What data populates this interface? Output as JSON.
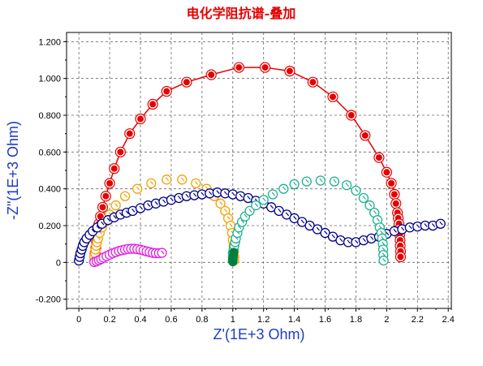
{
  "chart_data": {
    "type": "scatter",
    "title": "电化学阻抗谱-叠加",
    "xlabel": "Z'(1E+3 Ohm)",
    "ylabel": "-Z\"(1E+3 Ohm)",
    "xlim": [
      -0.08,
      2.42
    ],
    "ylim": [
      -0.25,
      1.25
    ],
    "xticks": [
      0,
      0.2,
      0.4,
      0.6,
      0.8,
      1,
      1.2,
      1.4,
      1.6,
      1.8,
      2,
      2.2,
      2.4
    ],
    "xtick_labels": [
      "0",
      "0.2",
      "0.4",
      "0.6",
      "0.8",
      "1",
      "1.2",
      "1.4",
      "1.6",
      "1.8",
      "2",
      "2.2",
      "2.4"
    ],
    "yticks": [
      -0.2,
      0,
      0.2,
      0.4,
      0.6,
      0.8,
      1.0,
      1.2
    ],
    "ytick_labels": [
      "-0.200",
      "0",
      "0.200",
      "0.400",
      "0.600",
      "0.800",
      "1.000",
      "1.200"
    ],
    "grid": true,
    "legend": "none",
    "series": [
      {
        "color": "#E60000",
        "marker": "filled-circle-ring",
        "points": [
          [
            0.105,
            0.02
          ],
          [
            0.105,
            0.05
          ],
          [
            0.11,
            0.08
          ],
          [
            0.115,
            0.11
          ],
          [
            0.12,
            0.15
          ],
          [
            0.125,
            0.18
          ],
          [
            0.13,
            0.21
          ],
          [
            0.14,
            0.25
          ],
          [
            0.155,
            0.3
          ],
          [
            0.175,
            0.36
          ],
          [
            0.2,
            0.43
          ],
          [
            0.23,
            0.51
          ],
          [
            0.27,
            0.6
          ],
          [
            0.33,
            0.7
          ],
          [
            0.4,
            0.78
          ],
          [
            0.48,
            0.86
          ],
          [
            0.57,
            0.93
          ],
          [
            0.7,
            0.98
          ],
          [
            0.86,
            1.02
          ],
          [
            1.04,
            1.06
          ],
          [
            1.21,
            1.06
          ],
          [
            1.37,
            1.04
          ],
          [
            1.52,
            0.98
          ],
          [
            1.65,
            0.9
          ],
          [
            1.77,
            0.8
          ],
          [
            1.86,
            0.69
          ],
          [
            1.95,
            0.57
          ],
          [
            2.0,
            0.49
          ],
          [
            2.03,
            0.43
          ],
          [
            2.05,
            0.37
          ],
          [
            2.06,
            0.32
          ],
          [
            2.07,
            0.27
          ],
          [
            2.075,
            0.24
          ],
          [
            2.08,
            0.21
          ],
          [
            2.082,
            0.18
          ],
          [
            2.085,
            0.15
          ],
          [
            2.087,
            0.12
          ],
          [
            2.088,
            0.09
          ],
          [
            2.09,
            0.06
          ],
          [
            2.09,
            0.03
          ]
        ]
      },
      {
        "color": "#F5A000",
        "marker": "open-circle-tick",
        "points": [
          [
            0.1,
            0.01
          ],
          [
            0.1,
            0.03
          ],
          [
            0.105,
            0.05
          ],
          [
            0.108,
            0.07
          ],
          [
            0.112,
            0.09
          ],
          [
            0.118,
            0.11
          ],
          [
            0.125,
            0.13
          ],
          [
            0.135,
            0.16
          ],
          [
            0.15,
            0.19
          ],
          [
            0.17,
            0.22
          ],
          [
            0.2,
            0.26
          ],
          [
            0.24,
            0.31
          ],
          [
            0.3,
            0.36
          ],
          [
            0.38,
            0.4
          ],
          [
            0.47,
            0.43
          ],
          [
            0.57,
            0.45
          ],
          [
            0.67,
            0.45
          ],
          [
            0.76,
            0.43
          ],
          [
            0.83,
            0.4
          ],
          [
            0.88,
            0.36
          ],
          [
            0.92,
            0.32
          ],
          [
            0.95,
            0.28
          ],
          [
            0.97,
            0.24
          ],
          [
            0.985,
            0.2
          ],
          [
            0.995,
            0.16
          ],
          [
            1.0,
            0.12
          ],
          [
            1.005,
            0.09
          ],
          [
            1.008,
            0.06
          ],
          [
            1.01,
            0.03
          ],
          [
            1.01,
            0.01
          ]
        ]
      },
      {
        "color": "#00008B",
        "marker": "open-circle-tick",
        "points": [
          [
            0.0,
            0.01
          ],
          [
            0.005,
            0.03
          ],
          [
            0.01,
            0.05
          ],
          [
            0.018,
            0.07
          ],
          [
            0.025,
            0.09
          ],
          [
            0.035,
            0.11
          ],
          [
            0.05,
            0.13
          ],
          [
            0.07,
            0.15
          ],
          [
            0.09,
            0.17
          ],
          [
            0.12,
            0.19
          ],
          [
            0.15,
            0.21
          ],
          [
            0.19,
            0.23
          ],
          [
            0.23,
            0.245
          ],
          [
            0.27,
            0.26
          ],
          [
            0.31,
            0.27
          ],
          [
            0.35,
            0.28
          ],
          [
            0.4,
            0.295
          ],
          [
            0.45,
            0.31
          ],
          [
            0.5,
            0.32
          ],
          [
            0.55,
            0.33
          ],
          [
            0.6,
            0.34
          ],
          [
            0.65,
            0.35
          ],
          [
            0.7,
            0.36
          ],
          [
            0.75,
            0.365
          ],
          [
            0.8,
            0.37
          ],
          [
            0.85,
            0.375
          ],
          [
            0.9,
            0.38
          ],
          [
            0.95,
            0.375
          ],
          [
            1.0,
            0.37
          ],
          [
            1.05,
            0.36
          ],
          [
            1.1,
            0.35
          ],
          [
            1.15,
            0.335
          ],
          [
            1.2,
            0.32
          ],
          [
            1.25,
            0.3
          ],
          [
            1.3,
            0.28
          ],
          [
            1.35,
            0.26
          ],
          [
            1.4,
            0.24
          ],
          [
            1.45,
            0.22
          ],
          [
            1.5,
            0.2
          ],
          [
            1.55,
            0.18
          ],
          [
            1.6,
            0.16
          ],
          [
            1.65,
            0.14
          ],
          [
            1.7,
            0.12
          ],
          [
            1.75,
            0.11
          ],
          [
            1.8,
            0.11
          ],
          [
            1.85,
            0.12
          ],
          [
            1.9,
            0.13
          ],
          [
            1.95,
            0.14
          ],
          [
            2.0,
            0.155
          ],
          [
            2.05,
            0.17
          ],
          [
            2.1,
            0.18
          ],
          [
            2.15,
            0.19
          ],
          [
            2.2,
            0.195
          ],
          [
            2.25,
            0.2
          ],
          [
            2.3,
            0.2
          ],
          [
            2.35,
            0.21
          ]
        ]
      },
      {
        "color": "#20B090",
        "marker": "open-circle-tick",
        "points": [
          [
            1.0,
            0.01
          ],
          [
            1.0,
            0.03
          ],
          [
            1.0,
            0.05
          ],
          [
            1.005,
            0.07
          ],
          [
            1.01,
            0.09
          ],
          [
            1.015,
            0.11
          ],
          [
            1.02,
            0.13
          ],
          [
            1.03,
            0.16
          ],
          [
            1.04,
            0.19
          ],
          [
            1.06,
            0.22
          ],
          [
            1.08,
            0.25
          ],
          [
            1.11,
            0.28
          ],
          [
            1.15,
            0.31
          ],
          [
            1.2,
            0.34
          ],
          [
            1.26,
            0.37
          ],
          [
            1.33,
            0.4
          ],
          [
            1.4,
            0.425
          ],
          [
            1.48,
            0.44
          ],
          [
            1.57,
            0.445
          ],
          [
            1.66,
            0.44
          ],
          [
            1.74,
            0.42
          ],
          [
            1.8,
            0.39
          ],
          [
            1.85,
            0.35
          ],
          [
            1.89,
            0.31
          ],
          [
            1.92,
            0.27
          ],
          [
            1.94,
            0.23
          ],
          [
            1.955,
            0.19
          ],
          [
            1.965,
            0.16
          ],
          [
            1.97,
            0.13
          ],
          [
            1.975,
            0.1
          ],
          [
            1.977,
            0.07
          ],
          [
            1.978,
            0.04
          ],
          [
            1.98,
            0.01
          ]
        ]
      },
      {
        "color": "#E020E0",
        "marker": "open-circle-tick",
        "points": [
          [
            0.1,
            0.002
          ],
          [
            0.115,
            0.006
          ],
          [
            0.13,
            0.012
          ],
          [
            0.145,
            0.018
          ],
          [
            0.16,
            0.026
          ],
          [
            0.18,
            0.034
          ],
          [
            0.2,
            0.042
          ],
          [
            0.22,
            0.05
          ],
          [
            0.24,
            0.056
          ],
          [
            0.26,
            0.062
          ],
          [
            0.28,
            0.066
          ],
          [
            0.3,
            0.07
          ],
          [
            0.32,
            0.073
          ],
          [
            0.34,
            0.074
          ],
          [
            0.36,
            0.074
          ],
          [
            0.38,
            0.072
          ],
          [
            0.4,
            0.069
          ],
          [
            0.42,
            0.065
          ],
          [
            0.44,
            0.06
          ],
          [
            0.46,
            0.056
          ],
          [
            0.48,
            0.052
          ],
          [
            0.5,
            0.05
          ],
          [
            0.52,
            0.05
          ],
          [
            0.54,
            0.052
          ]
        ]
      },
      {
        "color": "#008040",
        "marker": "filled-circle",
        "points": [
          [
            1.0,
            0.003
          ],
          [
            1.0,
            0.008
          ],
          [
            1.0,
            0.014
          ],
          [
            1.0,
            0.02
          ],
          [
            1.002,
            0.026
          ],
          [
            1.003,
            0.032
          ],
          [
            1.004,
            0.04
          ],
          [
            1.005,
            0.048
          ],
          [
            1.006,
            0.055
          ]
        ]
      }
    ]
  }
}
